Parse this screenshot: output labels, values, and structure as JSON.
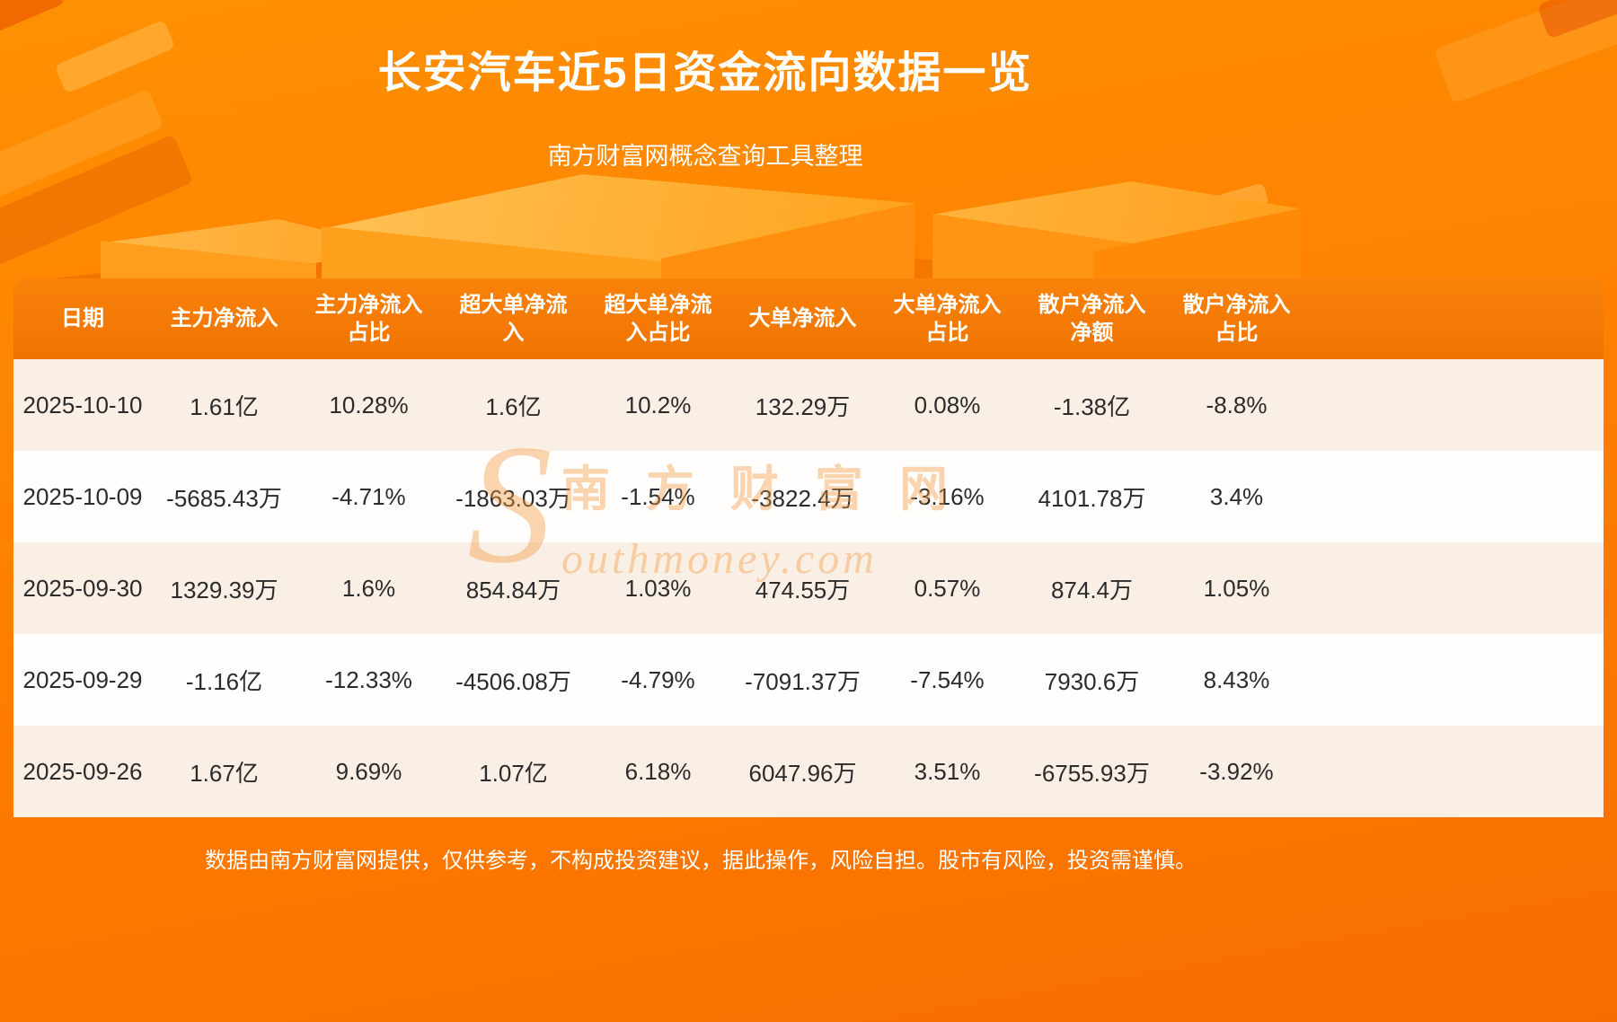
{
  "page": {
    "title": "长安汽车近5日资金流向数据一览",
    "subtitle": "南方财富网概念查询工具整理",
    "footer_note": "数据由南方财富网提供，仅供参考，不构成投资建议，据此操作，风险自担。股市有风险，投资需谨慎。"
  },
  "watermark": {
    "initial": "S",
    "site_name": "南方财富网",
    "domain": "outhmoney.com"
  },
  "colors": {
    "background_orange": "#fd7d01",
    "table_header_orange": "#f37800",
    "row_cream": "#f9efe5",
    "row_white": "#fffefd",
    "text_dark": "#2b2b2b",
    "text_white": "#ffffff",
    "watermark_orange": "rgba(244,156,64,0.42)"
  },
  "table": {
    "headers": [
      "日期",
      "主力净流入",
      "主力净流入\n占比",
      "超大单净流\n入",
      "超大单净流\n入占比",
      "大单净流入",
      "大单净流入\n占比",
      "散户净流入\n净额",
      "散户净流入\n占比"
    ]
  },
  "chart_data": {
    "type": "table",
    "title": "长安汽车近5日资金流向数据一览",
    "subtitle": "南方财富网概念查询工具整理",
    "columns": [
      "日期",
      "主力净流入",
      "主力净流入占比",
      "超大单净流入",
      "超大单净流入占比",
      "大单净流入",
      "大单净流入占比",
      "散户净流入净额",
      "散户净流入占比"
    ],
    "rows": [
      [
        "2025-10-10",
        "1.61亿",
        "10.28%",
        "1.6亿",
        "10.2%",
        "132.29万",
        "0.08%",
        "-1.38亿",
        "-8.8%"
      ],
      [
        "2025-10-09",
        "-5685.43万",
        "-4.71%",
        "-1863.03万",
        "-1.54%",
        "-3822.4万",
        "-3.16%",
        "4101.78万",
        "3.4%"
      ],
      [
        "2025-09-30",
        "1329.39万",
        "1.6%",
        "854.84万",
        "1.03%",
        "474.55万",
        "0.57%",
        "874.4万",
        "1.05%"
      ],
      [
        "2025-09-29",
        "-1.16亿",
        "-12.33%",
        "-4506.08万",
        "-4.79%",
        "-7091.37万",
        "-7.54%",
        "7930.6万",
        "8.43%"
      ],
      [
        "2025-09-26",
        "1.67亿",
        "9.69%",
        "1.07亿",
        "6.18%",
        "6047.96万",
        "3.51%",
        "-6755.93万",
        "-3.92%"
      ]
    ]
  }
}
